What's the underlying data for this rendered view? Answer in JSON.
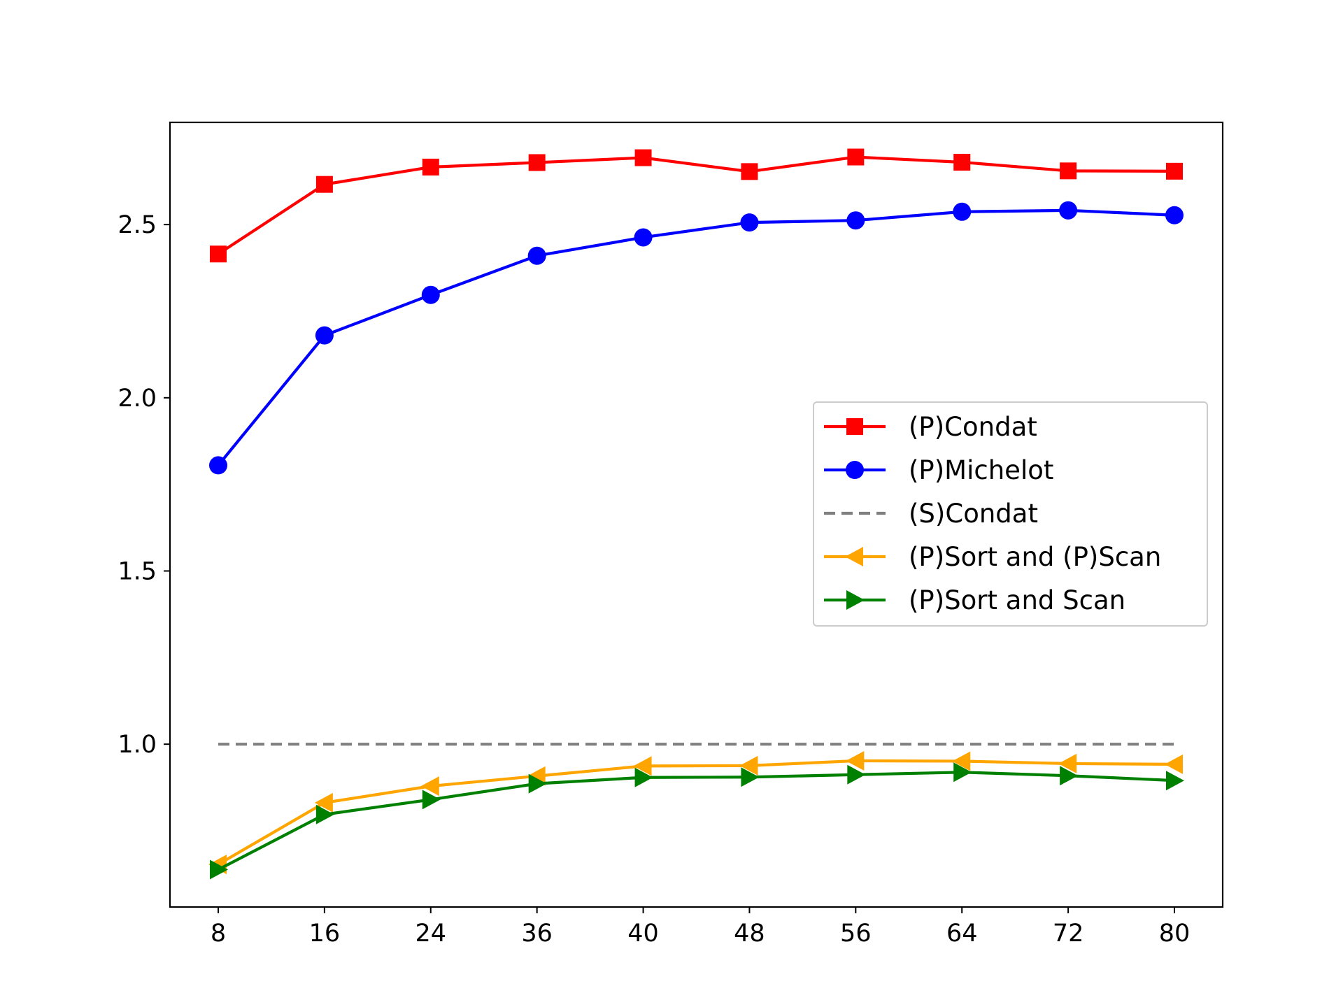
{
  "chart_data": {
    "type": "line",
    "title": "",
    "xlabel": "",
    "ylabel": "",
    "x_categories": [
      "8",
      "16",
      "24",
      "36",
      "40",
      "48",
      "56",
      "64",
      "72",
      "80"
    ],
    "ylim": [
      0.53,
      2.795
    ],
    "y_ticks": [
      "1.0",
      "1.5",
      "2.0",
      "2.5"
    ],
    "y_tick_values": [
      1.0,
      1.5,
      2.0,
      2.5
    ],
    "grid": false,
    "legend_position": "center-right",
    "series": [
      {
        "name": "(P)Condat",
        "color": "#ff0000",
        "marker": "square",
        "linestyle": "solid",
        "values": [
          2.415,
          2.616,
          2.666,
          2.679,
          2.693,
          2.653,
          2.695,
          2.68,
          2.655,
          2.654
        ]
      },
      {
        "name": "(P)Michelot",
        "color": "#0000ff",
        "marker": "circle",
        "linestyle": "solid",
        "values": [
          1.805,
          2.18,
          2.297,
          2.41,
          2.463,
          2.506,
          2.512,
          2.537,
          2.541,
          2.527
        ]
      },
      {
        "name": "(S)Condat",
        "color": "#808080",
        "marker": "none",
        "linestyle": "dashed",
        "values": [
          1.0,
          1.0,
          1.0,
          1.0,
          1.0,
          1.0,
          1.0,
          1.0,
          1.0,
          1.0
        ]
      },
      {
        "name": "(P)Sort and (P)Scan",
        "color": "#ffa500",
        "marker": "triangle-left",
        "linestyle": "solid",
        "values": [
          0.653,
          0.831,
          0.879,
          0.908,
          0.937,
          0.938,
          0.952,
          0.951,
          0.944,
          0.942
        ]
      },
      {
        "name": "(P)Sort and Scan",
        "color": "#008000",
        "marker": "triangle-right",
        "linestyle": "solid",
        "values": [
          0.638,
          0.797,
          0.84,
          0.886,
          0.904,
          0.905,
          0.912,
          0.919,
          0.909,
          0.895
        ]
      }
    ]
  }
}
